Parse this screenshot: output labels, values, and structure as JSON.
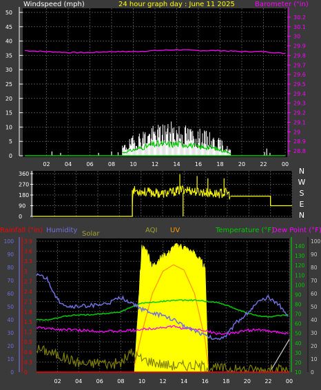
{
  "header": {
    "windspeed_label": "Windspeed (mph)",
    "title": "24 hour graph day : June 11 2025",
    "barometer_label": "Barometer (\"in)"
  },
  "bottom_header": {
    "rainfall_label": "Rainfall (\"in)",
    "humidity_label": "Humidity",
    "solar_label": "Solar",
    "aqi_label": "AQI",
    "uv_label": "UV",
    "temperature_label": "Temperature (°F)",
    "dewpoint_label": "Dew Point (°F)"
  },
  "colors": {
    "background": "#3a3a3a",
    "plot_bg": "#000000",
    "grid": "#4a4a4a",
    "barometer": "#ff00ff",
    "windspeed": "#ffffff",
    "wind_avg": "#00cc00",
    "direction": "#ffff00",
    "humidity": "#7070dd",
    "temperature": "#00cc00",
    "dewpoint": "#ff00ff",
    "solar": "#ffff00",
    "uv": "#ff9900",
    "aqi": "#808000",
    "rain": "#ff0000"
  },
  "chart_data": [
    {
      "type": "line",
      "name": "wind-barometer",
      "title": "24 hour graph day : June 11 2025",
      "x_ticks": [
        "02",
        "04",
        "06",
        "08",
        "10",
        "12",
        "14",
        "16",
        "18",
        "20",
        "22",
        "00"
      ],
      "left_axis": {
        "label": "Windspeed (mph)",
        "ticks": [
          "50",
          "45",
          "40",
          "35",
          "30",
          "25",
          "20",
          "15",
          "10",
          "5",
          "0"
        ],
        "ylim": [
          0,
          50
        ]
      },
      "right_axis": {
        "label": "Barometer (\"in)",
        "ticks": [
          "30.2",
          "30.1",
          "30",
          "29.9",
          "29.8",
          "29.7",
          "29.6",
          "29.5",
          "29.4",
          "29.3",
          "29.2",
          "29.1",
          "29",
          "28.9",
          "28.8"
        ],
        "ylim": [
          28.75,
          30.25
        ]
      },
      "series": [
        {
          "name": "Barometer",
          "color": "#ff00ff",
          "axis": "right",
          "x": [
            0,
            2,
            4,
            6,
            8,
            10,
            12,
            14,
            16,
            18,
            20,
            22,
            24
          ],
          "y": [
            29.85,
            29.84,
            29.83,
            29.83,
            29.84,
            29.84,
            29.85,
            29.86,
            29.85,
            29.85,
            29.84,
            29.84,
            29.82
          ]
        },
        {
          "name": "Windspeed",
          "color": "#ffffff",
          "axis": "left",
          "x": [
            9,
            10,
            11,
            12,
            13,
            14,
            15,
            16,
            17,
            18,
            19
          ],
          "y": [
            3,
            6,
            8,
            9,
            10,
            10,
            9,
            8,
            7,
            5,
            2
          ]
        },
        {
          "name": "Wind average",
          "color": "#00cc00",
          "axis": "left",
          "x": [
            9,
            10,
            11,
            12,
            13,
            14,
            15,
            16,
            17,
            18,
            19
          ],
          "y": [
            1,
            2,
            3,
            4,
            4,
            4,
            4,
            3,
            3,
            2,
            1
          ]
        }
      ]
    },
    {
      "type": "scatter",
      "name": "wind-direction",
      "x_ticks": [
        "02",
        "04",
        "06",
        "08",
        "10",
        "12",
        "14",
        "16",
        "18",
        "20",
        "22",
        "00"
      ],
      "left_axis": {
        "ticks": [
          "360",
          "270",
          "180",
          "90",
          "0"
        ],
        "ylim": [
          0,
          360
        ]
      },
      "right_axis": {
        "ticks": [
          "N",
          "W",
          "S",
          "E",
          "N"
        ]
      },
      "series": [
        {
          "name": "Direction",
          "color": "#ffff00",
          "x": [
            0,
            9.2,
            9.2,
            10,
            11,
            12,
            13,
            14,
            15,
            16,
            17,
            18,
            18.3,
            20,
            22,
            22,
            24
          ],
          "y": [
            0,
            0,
            220,
            210,
            200,
            190,
            205,
            230,
            210,
            200,
            190,
            200,
            170,
            170,
            170,
            90,
            90
          ]
        }
      ]
    },
    {
      "type": "line",
      "name": "temperature-humidity",
      "x_ticks": [
        "02",
        "04",
        "06",
        "08",
        "10",
        "12",
        "14",
        "16",
        "18",
        "20",
        "22",
        "00"
      ],
      "rain_axis": {
        "label": "Rainfall (\"in)",
        "ticks": [
          "3.9",
          "3.6",
          "3.3",
          "3",
          "2.7",
          "2.4",
          "2.1",
          "1.8",
          "1.5",
          "1.2",
          "0.9",
          "0.6",
          "0.3",
          "0"
        ],
        "ylim": [
          0,
          3.9
        ]
      },
      "humidity_axis": {
        "label": "Humidity",
        "ticks": [
          "100",
          "90",
          "80",
          "70",
          "60",
          "50",
          "40",
          "30",
          "20",
          "10",
          "0"
        ],
        "ylim": [
          0,
          100
        ]
      },
      "temperature_axis": {
        "label": "Temperature (°F)",
        "ticks": [
          "140",
          "130",
          "120",
          "110",
          "100",
          "90",
          "80",
          "70",
          "60",
          "50",
          "40",
          "30",
          "20",
          "10"
        ],
        "ylim": [
          10,
          145
        ]
      },
      "uv_axis": {
        "ticks": [
          "100",
          "90",
          "80",
          "70",
          "60",
          "50",
          "40",
          "30",
          "20",
          "10",
          "0"
        ],
        "ylim": [
          0,
          100
        ]
      },
      "series": [
        {
          "name": "Humidity",
          "color": "#7070dd",
          "axis": "humidity",
          "x": [
            0,
            1,
            2,
            3,
            4,
            5,
            6,
            7,
            8,
            9,
            10,
            11,
            12,
            13,
            14,
            15,
            16,
            17,
            18,
            19,
            20,
            21,
            22,
            23,
            24
          ],
          "y": [
            75,
            71,
            55,
            50,
            50,
            51,
            51,
            53,
            57,
            53,
            48,
            45,
            43,
            40,
            35,
            32,
            28,
            25,
            28,
            38,
            45,
            53,
            57,
            52,
            41
          ]
        },
        {
          "name": "Temperature",
          "color": "#00cc00",
          "axis": "temperature",
          "x": [
            0,
            1,
            2,
            3,
            4,
            5,
            6,
            7,
            8,
            9,
            10,
            11,
            12,
            13,
            14,
            15,
            16,
            17,
            18,
            19,
            20,
            21,
            22,
            23,
            24
          ],
          "y": [
            64,
            64,
            66,
            68,
            69,
            69,
            70,
            71,
            72,
            77,
            81,
            82,
            83,
            84,
            84,
            84,
            83,
            82,
            79,
            75,
            71,
            68,
            67,
            68,
            69
          ]
        },
        {
          "name": "Dew Point",
          "color": "#ff00ff",
          "axis": "temperature",
          "x": [
            0,
            1,
            2,
            3,
            4,
            5,
            6,
            7,
            8,
            9,
            10,
            11,
            12,
            13,
            14,
            15,
            16,
            17,
            18,
            19,
            20,
            21,
            22,
            23,
            24
          ],
          "y": [
            56,
            55,
            54,
            54,
            53,
            53,
            52,
            52,
            52,
            53,
            54,
            55,
            56,
            57,
            55,
            54,
            53,
            50,
            49,
            51,
            53,
            54,
            52,
            51,
            50
          ]
        },
        {
          "name": "Solar",
          "color": "#ffff00",
          "axis": "uv",
          "x": [
            9.3,
            10,
            10.5,
            11,
            11.5,
            12,
            12.5,
            13,
            13.5,
            14,
            14.5,
            15,
            15.5,
            16,
            16.3
          ],
          "y": [
            0,
            95,
            92,
            80,
            85,
            88,
            90,
            95,
            96,
            95,
            92,
            90,
            85,
            80,
            0
          ]
        },
        {
          "name": "UV",
          "color": "#ff9900",
          "axis": "uv",
          "x": [
            9.3,
            10,
            11,
            12,
            13,
            14,
            15,
            16,
            16.3
          ],
          "y": [
            5,
            30,
            60,
            77,
            82,
            78,
            60,
            25,
            5
          ]
        },
        {
          "name": "AQI",
          "color": "#808000",
          "axis": "uv",
          "x": [
            0,
            1,
            2,
            3,
            4,
            5,
            6,
            7,
            8,
            9,
            10,
            11,
            12,
            13,
            14,
            15,
            16,
            17,
            18,
            19,
            20,
            21,
            22,
            23,
            24
          ],
          "y": [
            18,
            16,
            13,
            10,
            7,
            6,
            8,
            6,
            7,
            15,
            10,
            8,
            6,
            5,
            5,
            5,
            4,
            3,
            3,
            2,
            2,
            2,
            2,
            2,
            1
          ]
        },
        {
          "name": "Rainfall",
          "color": "#ff0000",
          "axis": "rain",
          "x": [
            0,
            24
          ],
          "y": [
            0,
            0
          ]
        }
      ]
    }
  ]
}
